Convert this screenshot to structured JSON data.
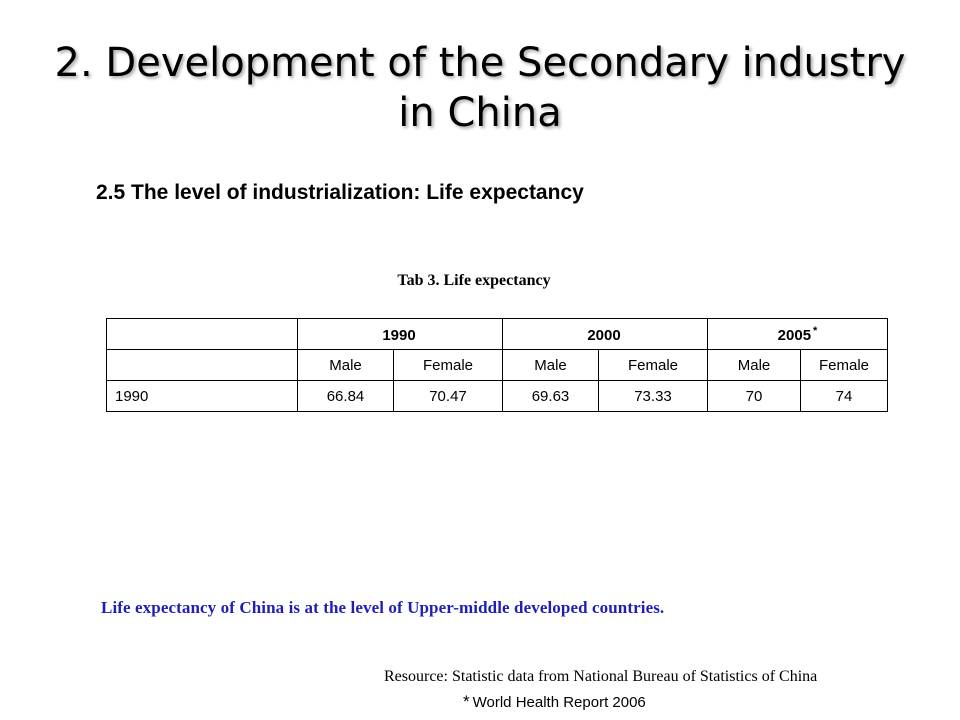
{
  "slide": {
    "title_line1": "2. Development of the Secondary industry",
    "title_line2": "in China",
    "subtitle": "2.5 The level of industrialization: Life expectancy"
  },
  "table": {
    "caption": "Tab 3. Life expectancy",
    "header_years": [
      "1990",
      "2000",
      "2005"
    ],
    "header_year_marks": [
      "",
      "",
      "*"
    ],
    "sub_headers": [
      "Male",
      "Female",
      "Male",
      "Female",
      "Male",
      "Female"
    ],
    "rows": [
      {
        "label": "1990",
        "cells": [
          "66.84",
          "70.47",
          "69.63",
          "73.33",
          "70",
          "74"
        ]
      }
    ]
  },
  "note": "Life expectancy of China is at the level of Upper-middle developed countries.",
  "sources": {
    "resource": "Resource: Statistic data from National Bureau of Statistics of China",
    "who_mark": "*",
    "who": "World Health Report 2006"
  },
  "colors": {
    "note_text": "#1f1fb4",
    "background": "#ffffff"
  }
}
